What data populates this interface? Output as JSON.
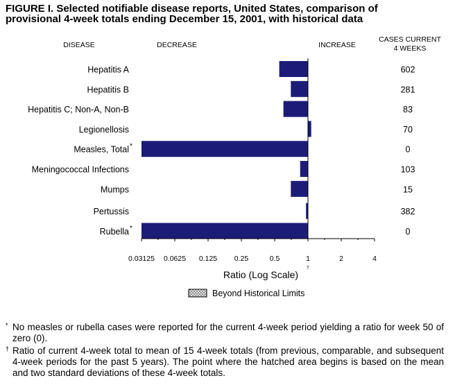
{
  "title": {
    "line1": "FIGURE I. Selected notifiable disease reports, United States, comparison of",
    "line2": "provisional 4-week totals ending December 15, 2001, with historical data"
  },
  "chart_data": {
    "type": "bar",
    "orientation": "horizontal",
    "scale": "log2",
    "column_headers": {
      "disease": "DISEASE",
      "decrease": "DECREASE",
      "increase": "INCREASE",
      "cases_line1": "CASES CURRENT",
      "cases_line2": "4 WEEKS"
    },
    "categories": [
      {
        "label": "Hepatitis A",
        "mark": "",
        "ratio": 0.55,
        "cases": "602"
      },
      {
        "label": "Hepatitis B",
        "mark": "",
        "ratio": 0.7,
        "cases": "281"
      },
      {
        "label": "Hepatitis C; Non-A, Non-B",
        "mark": "",
        "ratio": 0.6,
        "cases": "83"
      },
      {
        "label": "Legionellosis",
        "mark": "",
        "ratio": 1.07,
        "cases": "70"
      },
      {
        "label": "Measles, Total",
        "mark": "*",
        "ratio": 0.03125,
        "cases": "0"
      },
      {
        "label": "Meningococcal Infections",
        "mark": "",
        "ratio": 0.85,
        "cases": "103"
      },
      {
        "label": "Mumps",
        "mark": "",
        "ratio": 0.7,
        "cases": "15"
      },
      {
        "label": "Pertussis",
        "mark": "",
        "ratio": 0.96,
        "cases": "382"
      },
      {
        "label": "Rubella",
        "mark": "*",
        "ratio": 0.03125,
        "cases": "0"
      }
    ],
    "x_ticks": [
      "0.03125",
      "0.0625",
      "0.125",
      "0.25",
      "0.5",
      "1",
      "2",
      "4"
    ],
    "x_tick_values": [
      0.03125,
      0.0625,
      0.125,
      0.25,
      0.5,
      1,
      2,
      4
    ],
    "xlim": [
      0.03125,
      4
    ],
    "reference_line": 1,
    "xlabel": "Ratio (Log Scale)",
    "xlabel_mark": "†",
    "legend": {
      "label": "Beyond Historical Limits",
      "placement": "bottom-center"
    },
    "colors": {
      "bar": "#1c1c78",
      "axis": "#000000",
      "hatch": "#888888"
    }
  },
  "footnotes": [
    {
      "mark": "*",
      "text": "No measles or rubella cases were reported for the current 4-week period yielding a ratio for week 50 of zero (0)."
    },
    {
      "mark": "†",
      "text": "Ratio of current 4-week total to mean of 15 4-week totals (from previous, comparable, and subsequent 4-week periods for the past 5 years). The point where the hatched area begins is based on the mean and two standard deviations of these 4-week totals."
    }
  ]
}
